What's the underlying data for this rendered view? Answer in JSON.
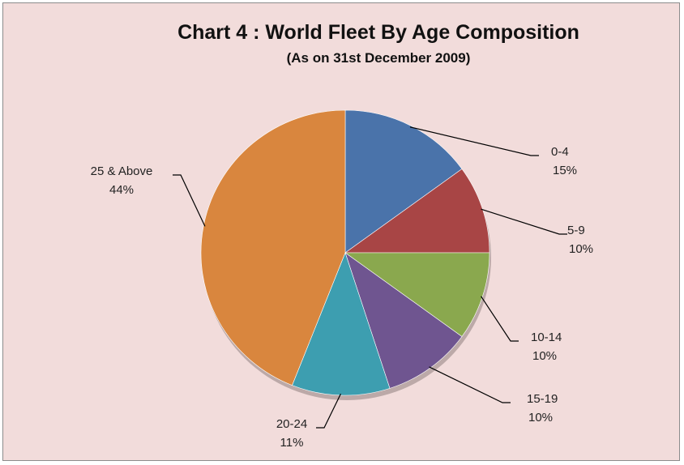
{
  "chart_data": {
    "type": "pie",
    "title": "Chart 4 : World Fleet By Age Composition",
    "subtitle": "(As on 31st December 2009)",
    "slices": [
      {
        "label": "0-4",
        "percent_label": "15%",
        "value": 15,
        "color": "#4a73aa"
      },
      {
        "label": "5-9",
        "percent_label": "10%",
        "value": 10,
        "color": "#a84545"
      },
      {
        "label": "10-14",
        "percent_label": "10%",
        "value": 10,
        "color": "#8aa84e"
      },
      {
        "label": "15-19",
        "percent_label": "10%",
        "value": 10,
        "color": "#6f5590"
      },
      {
        "label": "20-24",
        "percent_label": "11%",
        "value": 11,
        "color": "#3d9eb0"
      },
      {
        "label": "25 & Above",
        "percent_label": "44%",
        "value": 44,
        "color": "#d9863e"
      }
    ],
    "legend": "none",
    "start_angle": "12 o'clock, clockwise"
  }
}
